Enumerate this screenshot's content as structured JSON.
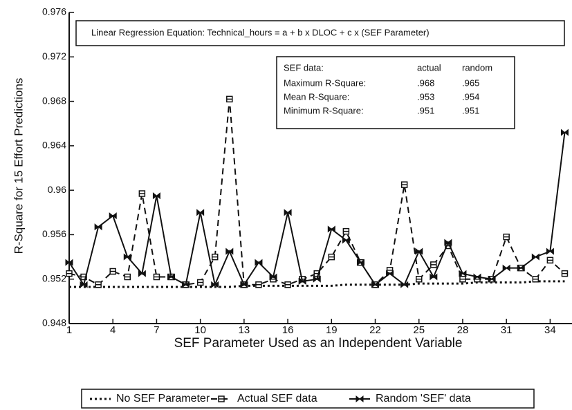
{
  "chart_data": {
    "type": "line",
    "annotation": "Linear Regression Equation:   Technical_hours = a + b x DLOC + c x (SEF Parameter)",
    "stats_table": {
      "header": [
        "SEF data:",
        "actual",
        "random"
      ],
      "rows": [
        [
          "Maximum R-Square:",
          ".968",
          ".965"
        ],
        [
          "Mean R-Square:",
          ".953",
          ".954"
        ],
        [
          "Minimum R-Square:",
          ".951",
          ".951"
        ]
      ]
    },
    "x_label": "SEF Parameter Used as an Independent Variable",
    "y_label": "R-Square for 15 Effort Predictions",
    "x": [
      1,
      2,
      3,
      4,
      5,
      6,
      7,
      8,
      9,
      10,
      11,
      12,
      13,
      14,
      15,
      16,
      17,
      18,
      19,
      20,
      21,
      22,
      23,
      24,
      25,
      26,
      27,
      28,
      29,
      30,
      31,
      32,
      33,
      34,
      35
    ],
    "series": [
      {
        "name": "No SEF Parameter",
        "color": "#111111",
        "style": "dotted",
        "values": [
          0.9513,
          0.9513,
          0.9513,
          0.9513,
          0.9513,
          0.9513,
          0.9513,
          0.9513,
          0.9513,
          0.9513,
          0.9513,
          0.9513,
          0.9514,
          0.9514,
          0.9514,
          0.9514,
          0.9514,
          0.9514,
          0.9514,
          0.9515,
          0.9515,
          0.9515,
          0.9515,
          0.9515,
          0.9516,
          0.9516,
          0.9516,
          0.9516,
          0.9517,
          0.9517,
          0.9517,
          0.9517,
          0.9518,
          0.9518,
          0.9518
        ]
      },
      {
        "name": "Actual SEF data",
        "color": "#111111",
        "style": "dashed",
        "values": [
          0.9525,
          0.9522,
          0.9515,
          0.9527,
          0.9522,
          0.9597,
          0.9522,
          0.9522,
          0.9515,
          0.9517,
          0.954,
          0.9682,
          0.9515,
          0.9515,
          0.952,
          0.9515,
          0.952,
          0.9525,
          0.954,
          0.9563,
          0.9535,
          0.9515,
          0.9528,
          0.9605,
          0.952,
          0.9533,
          0.955,
          0.952,
          0.952,
          0.952,
          0.9558,
          0.953,
          0.952,
          0.9537,
          0.9525
        ]
      },
      {
        "name": "Random 'SEF' data",
        "color": "#111111",
        "style": "solid",
        "values": [
          0.9535,
          0.9515,
          0.9567,
          0.9577,
          0.954,
          0.9525,
          0.9595,
          0.9522,
          0.9515,
          0.958,
          0.9515,
          0.9545,
          0.9515,
          0.9535,
          0.9522,
          0.958,
          0.9518,
          0.952,
          0.9565,
          0.9555,
          0.9535,
          0.9515,
          0.9525,
          0.9515,
          0.9545,
          0.9522,
          0.9553,
          0.9525,
          0.9522,
          0.952,
          0.953,
          0.953,
          0.954,
          0.9545,
          0.9652
        ]
      }
    ],
    "xlim": [
      1,
      35.5
    ],
    "xticks": [
      1,
      4,
      7,
      10,
      13,
      16,
      19,
      22,
      25,
      28,
      31,
      34
    ],
    "ylim": [
      0.948,
      0.976
    ],
    "yticks": [
      0.948,
      0.952,
      0.956,
      0.96,
      0.964,
      0.968,
      0.972,
      0.976
    ],
    "grid": false
  }
}
